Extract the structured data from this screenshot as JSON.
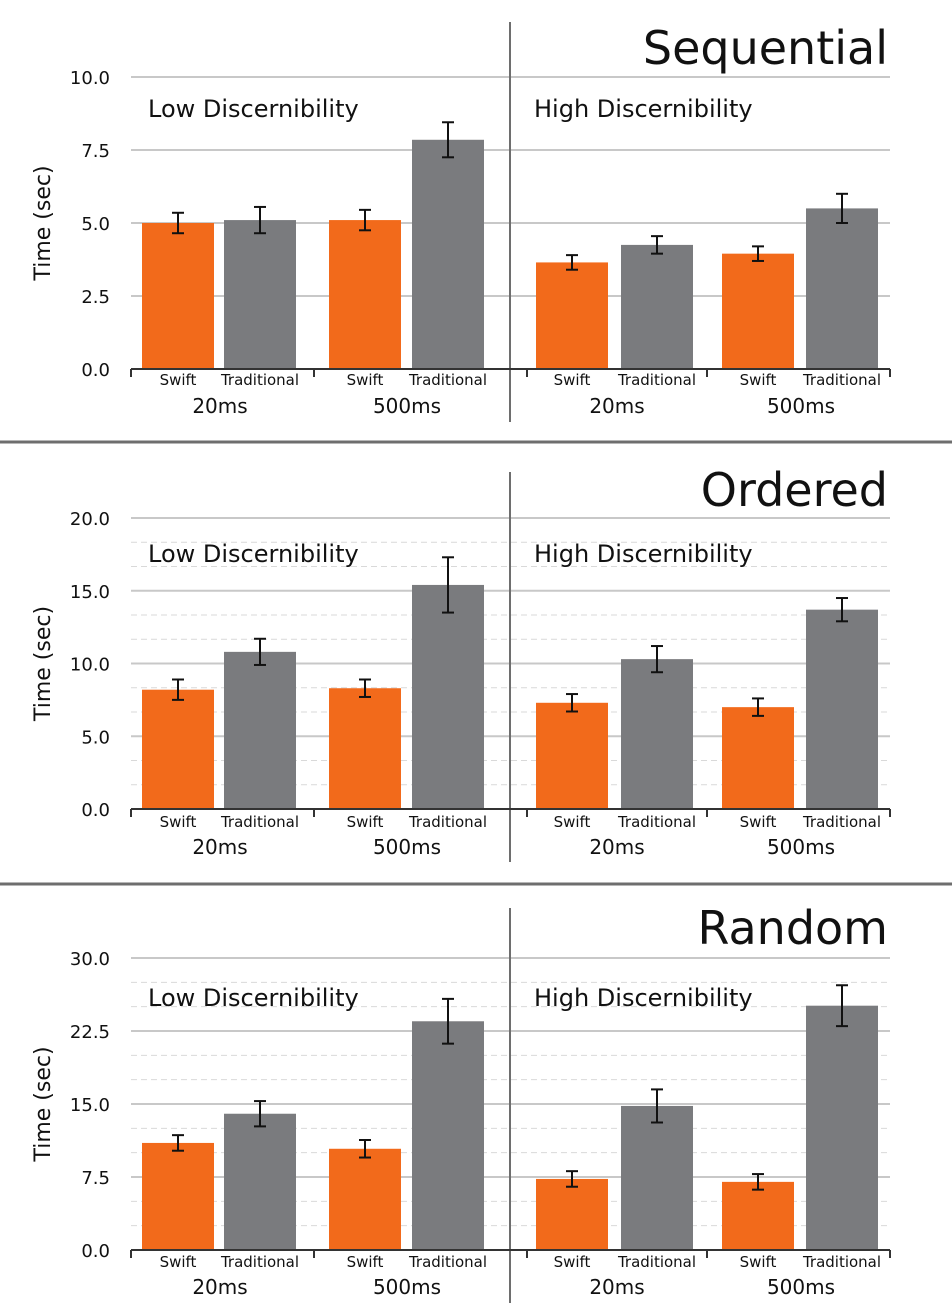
{
  "colors": {
    "swift": "#f26a1b",
    "traditional": "#7a7b7e",
    "grid": "#c8c8c8",
    "divider": "#6e6e6e",
    "error_bar": "#111111"
  },
  "chart_data": [
    {
      "type": "bar",
      "title": "Sequential",
      "ylabel": "Time (sec)",
      "ylim": [
        0,
        10
      ],
      "yticks": [
        "0.0",
        "2.5",
        "5.0",
        "7.5",
        "10.0"
      ],
      "minor_grid": false,
      "sections": [
        "Low Discernibility",
        "High Discernibility"
      ],
      "groups": [
        "20ms",
        "500ms"
      ],
      "series_names": [
        "Swift",
        "Traditional"
      ],
      "values": [
        [
          [
            5.0,
            5.1
          ],
          [
            5.1,
            7.85
          ]
        ],
        [
          [
            3.65,
            4.25
          ],
          [
            3.95,
            5.5
          ]
        ]
      ],
      "errors": [
        [
          [
            0.35,
            0.45
          ],
          [
            0.35,
            0.6
          ]
        ],
        [
          [
            0.25,
            0.3
          ],
          [
            0.25,
            0.5
          ]
        ]
      ]
    },
    {
      "type": "bar",
      "title": "Ordered",
      "ylabel": "Time (sec)",
      "ylim": [
        0,
        20
      ],
      "yticks": [
        "0.0",
        "5.0",
        "10.0",
        "15.0",
        "20.0"
      ],
      "minor_grid": true,
      "sections": [
        "Low Discernibility",
        "High Discernibility"
      ],
      "groups": [
        "20ms",
        "500ms"
      ],
      "series_names": [
        "Swift",
        "Traditional"
      ],
      "values": [
        [
          [
            8.2,
            10.8
          ],
          [
            8.3,
            15.4
          ]
        ],
        [
          [
            7.3,
            10.3
          ],
          [
            7.0,
            13.7
          ]
        ]
      ],
      "errors": [
        [
          [
            0.7,
            0.9
          ],
          [
            0.6,
            1.9
          ]
        ],
        [
          [
            0.6,
            0.9
          ],
          [
            0.6,
            0.8
          ]
        ]
      ]
    },
    {
      "type": "bar",
      "title": "Random",
      "ylabel": "Time (sec)",
      "ylim": [
        0,
        30
      ],
      "yticks": [
        "0.0",
        "7.5",
        "15.0",
        "22.5",
        "30.0"
      ],
      "minor_grid": true,
      "sections": [
        "Low Discernibility",
        "High Discernibility"
      ],
      "groups": [
        "20ms",
        "500ms"
      ],
      "series_names": [
        "Swift",
        "Traditional"
      ],
      "values": [
        [
          [
            11.0,
            14.0
          ],
          [
            10.4,
            23.5
          ]
        ],
        [
          [
            7.3,
            14.8
          ],
          [
            7.0,
            25.1
          ]
        ]
      ],
      "errors": [
        [
          [
            0.8,
            1.3
          ],
          [
            0.9,
            2.3
          ]
        ],
        [
          [
            0.8,
            1.7
          ],
          [
            0.8,
            2.1
          ]
        ]
      ]
    }
  ]
}
